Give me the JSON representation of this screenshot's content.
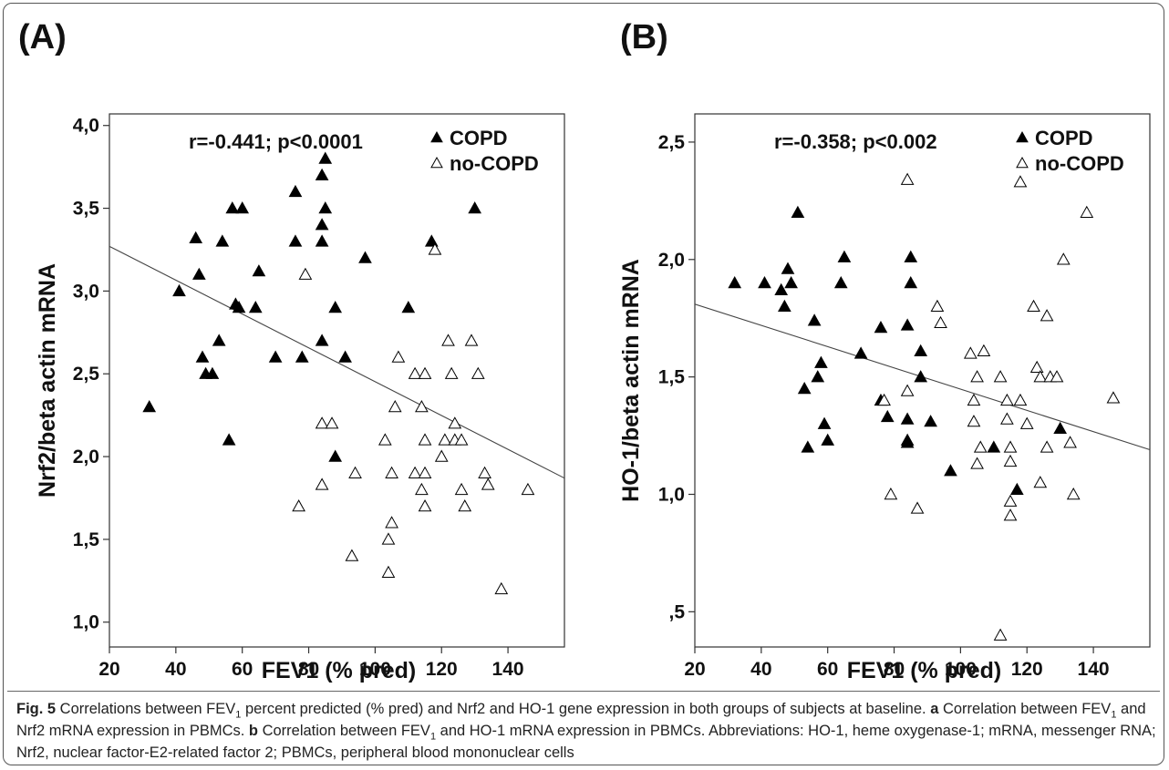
{
  "panels": [
    {
      "label": "(A)"
    },
    {
      "label": "(B)"
    }
  ],
  "caption": {
    "fig_label": "Fig. 5",
    "text1": " Correlations between FEV",
    "sub1": "1",
    "text2": " percent predicted (% pred) and Nrf2 and HO-1 gene expression in both groups of subjects at baseline. ",
    "a_label": "a",
    "text3": " Correlation between FEV",
    "sub2": "1",
    "text4": " and Nrf2 mRNA expression in PBMCs. ",
    "b_label": "b",
    "text5": " Correlation between FEV",
    "sub3": "1",
    "text6": " and HO-1 mRNA expression in PBMCs. Abbreviations: HO-1, heme oxygenase-1; mRNA, messenger RNA; Nrf2, nuclear factor-E2-related factor 2; PBMCs, peripheral blood mononuclear cells"
  },
  "colors": {
    "copd": "#000000",
    "nocopd": "#ffffff",
    "line": "#444444"
  },
  "chart_data": [
    {
      "type": "scatter",
      "xlabel": "FEV1 (% pred)",
      "ylabel": "Nrf2/beta actin mRNA",
      "annotation": "r=-0.441; p<0.0001",
      "xlim": [
        20,
        157
      ],
      "ylim": [
        0.85,
        4.07
      ],
      "xticks": [
        20,
        40,
        60,
        80,
        100,
        120,
        140
      ],
      "xtick_labels": [
        "20",
        "40",
        "60",
        "80",
        "100",
        "120",
        "140"
      ],
      "yticks": [
        1.0,
        1.5,
        2.0,
        2.5,
        3.0,
        3.5,
        4.0
      ],
      "ytick_labels": [
        "1,0",
        "1,5",
        "2,0",
        "2,5",
        "3,0",
        "3,5",
        "4,0"
      ],
      "legend_position": "top-right",
      "fit_line": {
        "x": [
          20,
          157
        ],
        "y": [
          3.27,
          1.87
        ]
      },
      "series": [
        {
          "name": "COPD",
          "marker": "filled-triangle",
          "points": [
            [
              32,
              2.3
            ],
            [
              41,
              3.0
            ],
            [
              46,
              3.32
            ],
            [
              47,
              3.1
            ],
            [
              48,
              2.6
            ],
            [
              49,
              2.5
            ],
            [
              51,
              2.5
            ],
            [
              53,
              2.7
            ],
            [
              54,
              3.3
            ],
            [
              56,
              2.1
            ],
            [
              57,
              3.5
            ],
            [
              58,
              2.92
            ],
            [
              59,
              2.9
            ],
            [
              60,
              3.5
            ],
            [
              64,
              2.9
            ],
            [
              65,
              3.12
            ],
            [
              70,
              2.6
            ],
            [
              76,
              3.6
            ],
            [
              76,
              3.3
            ],
            [
              78,
              2.6
            ],
            [
              84,
              3.7
            ],
            [
              84,
              3.4
            ],
            [
              84,
              3.3
            ],
            [
              84,
              2.7
            ],
            [
              85,
              3.8
            ],
            [
              85,
              3.5
            ],
            [
              88,
              2.9
            ],
            [
              88,
              2.0
            ],
            [
              91,
              2.6
            ],
            [
              97,
              3.2
            ],
            [
              110,
              2.9
            ],
            [
              117,
              3.3
            ],
            [
              130,
              3.5
            ]
          ]
        },
        {
          "name": "no-COPD",
          "marker": "open-triangle",
          "points": [
            [
              77,
              1.7
            ],
            [
              79,
              3.1
            ],
            [
              84,
              2.2
            ],
            [
              84,
              1.83
            ],
            [
              87,
              2.2
            ],
            [
              93,
              1.4
            ],
            [
              94,
              1.9
            ],
            [
              103,
              2.1
            ],
            [
              104,
              1.5
            ],
            [
              104,
              1.3
            ],
            [
              105,
              1.6
            ],
            [
              105,
              1.9
            ],
            [
              106,
              2.3
            ],
            [
              107,
              2.6
            ],
            [
              112,
              2.5
            ],
            [
              112,
              1.9
            ],
            [
              114,
              2.3
            ],
            [
              114,
              1.8
            ],
            [
              115,
              1.9
            ],
            [
              115,
              2.1
            ],
            [
              115,
              1.7
            ],
            [
              115,
              2.5
            ],
            [
              118,
              3.25
            ],
            [
              120,
              2.0
            ],
            [
              121,
              2.1
            ],
            [
              122,
              2.7
            ],
            [
              123,
              2.5
            ],
            [
              124,
              2.2
            ],
            [
              124,
              2.1
            ],
            [
              126,
              1.8
            ],
            [
              126,
              2.1
            ],
            [
              127,
              1.7
            ],
            [
              129,
              2.7
            ],
            [
              131,
              2.5
            ],
            [
              133,
              1.9
            ],
            [
              134,
              1.83
            ],
            [
              138,
              1.2
            ],
            [
              146,
              1.8
            ]
          ]
        }
      ]
    },
    {
      "type": "scatter",
      "xlabel": "FEV1 (% pred)",
      "ylabel": "HO-1/beta actin mRNA",
      "annotation": "r=-0.358; p<0.002",
      "xlim": [
        20,
        157
      ],
      "ylim": [
        0.35,
        2.62
      ],
      "xticks": [
        20,
        40,
        60,
        80,
        100,
        120,
        140
      ],
      "xtick_labels": [
        "20",
        "40",
        "60",
        "80",
        "100",
        "120",
        "140"
      ],
      "yticks": [
        0.5,
        1.0,
        1.5,
        2.0,
        2.5
      ],
      "ytick_labels": [
        ",5",
        "1,0",
        "1,5",
        "2,0",
        "2,5"
      ],
      "legend_position": "top-right",
      "fit_line": {
        "x": [
          20,
          157
        ],
        "y": [
          1.81,
          1.19
        ]
      },
      "series": [
        {
          "name": "COPD",
          "marker": "filled-triangle",
          "points": [
            [
              32,
              1.9
            ],
            [
              41,
              1.9
            ],
            [
              46,
              1.87
            ],
            [
              47,
              1.8
            ],
            [
              48,
              1.96
            ],
            [
              49,
              1.9
            ],
            [
              51,
              2.2
            ],
            [
              53,
              1.45
            ],
            [
              54,
              1.2
            ],
            [
              56,
              1.74
            ],
            [
              57,
              1.5
            ],
            [
              58,
              1.56
            ],
            [
              59,
              1.3
            ],
            [
              60,
              1.23
            ],
            [
              64,
              1.9
            ],
            [
              65,
              2.01
            ],
            [
              70,
              1.6
            ],
            [
              76,
              1.71
            ],
            [
              76,
              1.4
            ],
            [
              78,
              1.33
            ],
            [
              84,
              1.72
            ],
            [
              84,
              1.32
            ],
            [
              84,
              1.23
            ],
            [
              84,
              1.22
            ],
            [
              85,
              2.01
            ],
            [
              85,
              1.9
            ],
            [
              88,
              1.61
            ],
            [
              88,
              1.5
            ],
            [
              91,
              1.31
            ],
            [
              97,
              1.1
            ],
            [
              110,
              1.2
            ],
            [
              117,
              1.02
            ],
            [
              130,
              1.28
            ]
          ]
        },
        {
          "name": "no-COPD",
          "marker": "open-triangle",
          "points": [
            [
              77,
              1.4
            ],
            [
              79,
              1.0
            ],
            [
              84,
              2.34
            ],
            [
              84,
              1.44
            ],
            [
              87,
              0.94
            ],
            [
              93,
              1.8
            ],
            [
              94,
              1.73
            ],
            [
              103,
              1.6
            ],
            [
              104,
              1.4
            ],
            [
              104,
              1.31
            ],
            [
              105,
              1.5
            ],
            [
              105,
              1.13
            ],
            [
              106,
              1.2
            ],
            [
              107,
              1.61
            ],
            [
              112,
              1.5
            ],
            [
              112,
              0.4
            ],
            [
              114,
              1.32
            ],
            [
              114,
              1.4
            ],
            [
              115,
              1.2
            ],
            [
              115,
              1.14
            ],
            [
              115,
              0.97
            ],
            [
              115,
              0.91
            ],
            [
              118,
              2.33
            ],
            [
              118,
              1.4
            ],
            [
              120,
              1.3
            ],
            [
              122,
              1.8
            ],
            [
              123,
              1.54
            ],
            [
              124,
              1.05
            ],
            [
              124,
              1.5
            ],
            [
              126,
              1.76
            ],
            [
              126,
              1.2
            ],
            [
              127,
              1.5
            ],
            [
              129,
              1.5
            ],
            [
              131,
              2.0
            ],
            [
              133,
              1.22
            ],
            [
              134,
              1.0
            ],
            [
              138,
              2.2
            ],
            [
              146,
              1.41
            ]
          ]
        }
      ]
    }
  ]
}
